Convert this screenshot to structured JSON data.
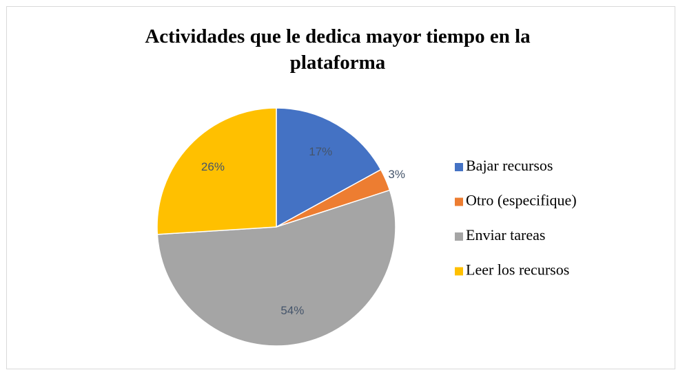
{
  "chart_data": {
    "type": "pie",
    "title": "Actividades que le dedica mayor tiempo en la plataforma",
    "categories": [
      "Bajar recursos",
      "Otro (especifique)",
      "Enviar tareas",
      "Leer los recursos"
    ],
    "values": [
      17,
      3,
      54,
      26
    ],
    "value_labels": [
      "17%",
      "3%",
      "54%",
      "26%"
    ],
    "colors": [
      "#4472c4",
      "#ed7d31",
      "#a5a5a5",
      "#ffc000"
    ],
    "legend": "right"
  }
}
